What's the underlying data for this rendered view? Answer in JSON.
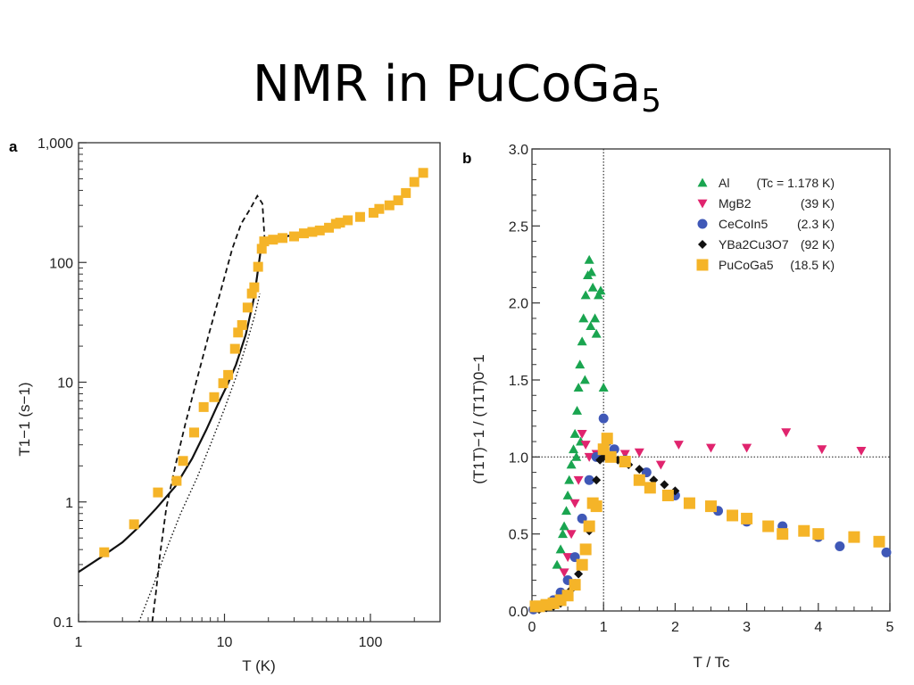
{
  "title": {
    "main": "NMR in PuCoGa",
    "sub": "5"
  },
  "colors": {
    "pucoga5": "#F5B428",
    "al": "#1AA550",
    "mgb2": "#E0246E",
    "cecoin5": "#3F58B7",
    "ybco": "#111111"
  },
  "chart_data": [
    {
      "panel": "a",
      "type": "scatter",
      "xlabel": "T (K)",
      "ylabel": "T1−1 (s−1)",
      "x_scale": "log",
      "y_scale": "log",
      "xlim": [
        1,
        300
      ],
      "ylim": [
        0.1,
        1000
      ],
      "x_ticks": [
        {
          "v": 1,
          "label": "1"
        },
        {
          "v": 10,
          "label": "10"
        },
        {
          "v": 100,
          "label": "100"
        }
      ],
      "y_ticks": [
        {
          "v": 0.1,
          "label": "0.1"
        },
        {
          "v": 1,
          "label": "1"
        },
        {
          "v": 10,
          "label": "10"
        },
        {
          "v": 100,
          "label": "100"
        },
        {
          "v": 1000,
          "label": "1,000"
        }
      ],
      "series": [
        {
          "marker": "square",
          "color": "#F5B428",
          "points": [
            [
              1.5,
              0.38
            ],
            [
              2.4,
              0.65
            ],
            [
              3.5,
              1.2
            ],
            [
              4.7,
              1.5
            ],
            [
              5.2,
              2.2
            ],
            [
              6.2,
              3.8
            ],
            [
              7.2,
              6.2
            ],
            [
              8.5,
              7.5
            ],
            [
              9.8,
              9.8
            ],
            [
              10.6,
              11.5
            ],
            [
              11.8,
              19
            ],
            [
              12.4,
              26
            ],
            [
              13.2,
              30
            ],
            [
              14.4,
              42
            ],
            [
              15.4,
              55
            ],
            [
              16.0,
              62
            ],
            [
              17.0,
              92
            ],
            [
              18.0,
              130
            ],
            [
              18.7,
              150
            ],
            [
              21.5,
              155
            ],
            [
              25,
              160
            ],
            [
              30,
              165
            ],
            [
              35,
              175
            ],
            [
              40,
              180
            ],
            [
              45,
              185
            ],
            [
              52,
              195
            ],
            [
              58,
              210
            ],
            [
              62,
              215
            ],
            [
              70,
              225
            ],
            [
              85,
              240
            ],
            [
              105,
              260
            ],
            [
              115,
              280
            ],
            [
              135,
              300
            ],
            [
              155,
              330
            ],
            [
              175,
              380
            ],
            [
              200,
              470
            ],
            [
              230,
              560
            ]
          ]
        }
      ],
      "curves": [
        {
          "style": "solid",
          "points": [
            [
              1,
              0.26
            ],
            [
              1.4,
              0.34
            ],
            [
              2,
              0.46
            ],
            [
              2.6,
              0.62
            ],
            [
              3.4,
              0.88
            ],
            [
              4.6,
              1.35
            ],
            [
              6,
              2.3
            ],
            [
              7.5,
              4
            ],
            [
              9,
              6.5
            ],
            [
              10.5,
              9.6
            ],
            [
              12,
              14
            ],
            [
              14,
              25
            ],
            [
              16,
              52
            ],
            [
              18,
              145
            ],
            [
              20,
              155
            ],
            [
              30,
              170
            ],
            [
              45,
              190
            ],
            [
              60,
              210
            ],
            [
              75,
              235
            ]
          ]
        },
        {
          "style": "dashed",
          "points": [
            [
              3.2,
              0.1
            ],
            [
              3.4,
              0.18
            ],
            [
              3.6,
              0.35
            ],
            [
              4,
              0.9
            ],
            [
              4.6,
              2
            ],
            [
              5.4,
              4.5
            ],
            [
              6.4,
              10
            ],
            [
              7.8,
              25
            ],
            [
              9.5,
              60
            ],
            [
              11.3,
              130
            ],
            [
              13,
              210
            ],
            [
              15,
              280
            ],
            [
              16.8,
              360
            ],
            [
              18.2,
              310
            ],
            [
              18.6,
              200
            ],
            [
              18.9,
              145
            ]
          ]
        },
        {
          "style": "dotted",
          "points": [
            [
              2.6,
              0.1
            ],
            [
              3.3,
              0.21
            ],
            [
              4,
              0.4
            ],
            [
              5,
              0.8
            ],
            [
              6.5,
              1.6
            ],
            [
              8,
              3
            ],
            [
              10,
              6
            ],
            [
              12,
              11
            ],
            [
              14,
              20
            ],
            [
              16,
              35
            ],
            [
              17.5,
              55
            ]
          ]
        }
      ]
    },
    {
      "panel": "b",
      "type": "scatter",
      "xlabel": "T / Tc",
      "ylabel": "(T1T)−1 / (T1T)0−1",
      "xlim": [
        0,
        5
      ],
      "ylim": [
        0,
        3
      ],
      "x_ticks": [
        {
          "v": 0,
          "label": "0"
        },
        {
          "v": 1,
          "label": "1"
        },
        {
          "v": 2,
          "label": "2"
        },
        {
          "v": 3,
          "label": "3"
        },
        {
          "v": 4,
          "label": "4"
        },
        {
          "v": 5,
          "label": "5"
        }
      ],
      "y_ticks": [
        {
          "v": 0,
          "label": "0.0"
        },
        {
          "v": 0.5,
          "label": "0.5"
        },
        {
          "v": 1,
          "label": "1.0"
        },
        {
          "v": 1.5,
          "label": "1.5"
        },
        {
          "v": 2,
          "label": "2.0"
        },
        {
          "v": 2.5,
          "label": "2.5"
        },
        {
          "v": 3,
          "label": "3.0"
        }
      ],
      "ref_lines": [
        {
          "axis": "x",
          "value": 1,
          "style": "dotted"
        },
        {
          "axis": "y",
          "value": 1,
          "style": "dotted"
        }
      ],
      "legend": {
        "position": "top-right",
        "entries": [
          {
            "name": "Al",
            "note": "(Tc = 1.178 K)"
          },
          {
            "name": "MgB2",
            "note": "(39 K)"
          },
          {
            "name": "CeCoIn5",
            "note": "(2.3 K)"
          },
          {
            "name": "YBa2Cu3O7",
            "note": "(92 K)"
          },
          {
            "name": "PuCoGa5",
            "note": "(18.5 K)"
          }
        ]
      },
      "series": [
        {
          "name": "Al",
          "marker": "triangle-up",
          "color": "#1AA550",
          "points": [
            [
              0.35,
              0.3
            ],
            [
              0.4,
              0.4
            ],
            [
              0.43,
              0.5
            ],
            [
              0.45,
              0.55
            ],
            [
              0.48,
              0.65
            ],
            [
              0.5,
              0.75
            ],
            [
              0.52,
              0.85
            ],
            [
              0.55,
              0.95
            ],
            [
              0.58,
              1.05
            ],
            [
              0.6,
              1.15
            ],
            [
              0.63,
              1.3
            ],
            [
              0.65,
              1.45
            ],
            [
              0.67,
              1.6
            ],
            [
              0.7,
              1.75
            ],
            [
              0.72,
              1.9
            ],
            [
              0.75,
              2.05
            ],
            [
              0.78,
              2.18
            ],
            [
              0.8,
              2.28
            ],
            [
              0.83,
              2.2
            ],
            [
              0.85,
              2.1
            ],
            [
              0.88,
              1.9
            ],
            [
              0.9,
              1.8
            ],
            [
              0.93,
              2.05
            ],
            [
              0.96,
              2.08
            ],
            [
              1.0,
              1.45
            ],
            [
              0.62,
              1.0
            ],
            [
              0.68,
              1.1
            ],
            [
              0.74,
              1.5
            ],
            [
              0.82,
              1.85
            ]
          ]
        },
        {
          "name": "MgB2",
          "marker": "triangle-down",
          "color": "#E0246E",
          "points": [
            [
              0.45,
              0.25
            ],
            [
              0.5,
              0.35
            ],
            [
              0.55,
              0.5
            ],
            [
              0.6,
              0.7
            ],
            [
              0.65,
              0.85
            ],
            [
              0.7,
              1.15
            ],
            [
              0.75,
              1.08
            ],
            [
              0.8,
              1.0
            ],
            [
              0.9,
              1.02
            ],
            [
              1.0,
              1.05
            ],
            [
              1.1,
              1.0
            ],
            [
              1.3,
              1.02
            ],
            [
              1.5,
              1.03
            ],
            [
              1.8,
              0.95
            ],
            [
              2.05,
              1.08
            ],
            [
              2.5,
              1.06
            ],
            [
              3.0,
              1.06
            ],
            [
              3.55,
              1.16
            ],
            [
              4.05,
              1.05
            ],
            [
              4.6,
              1.04
            ]
          ]
        },
        {
          "name": "CeCoIn5",
          "marker": "circle",
          "color": "#3F58B7",
          "points": [
            [
              0.02,
              0.01
            ],
            [
              0.1,
              0.02
            ],
            [
              0.2,
              0.04
            ],
            [
              0.3,
              0.07
            ],
            [
              0.4,
              0.12
            ],
            [
              0.5,
              0.2
            ],
            [
              0.6,
              0.35
            ],
            [
              0.7,
              0.6
            ],
            [
              0.8,
              0.85
            ],
            [
              0.9,
              1.0
            ],
            [
              1.0,
              1.25
            ],
            [
              1.05,
              1.1
            ],
            [
              1.15,
              1.05
            ],
            [
              1.3,
              0.98
            ],
            [
              1.6,
              0.9
            ],
            [
              2.0,
              0.75
            ],
            [
              2.6,
              0.65
            ],
            [
              3.0,
              0.58
            ],
            [
              3.5,
              0.55
            ],
            [
              4.0,
              0.48
            ],
            [
              4.3,
              0.42
            ],
            [
              4.95,
              0.38
            ]
          ]
        },
        {
          "name": "YBa2Cu3O7",
          "marker": "diamond",
          "color": "#111111",
          "points": [
            [
              0.1,
              0.01
            ],
            [
              0.2,
              0.02
            ],
            [
              0.3,
              0.03
            ],
            [
              0.4,
              0.05
            ],
            [
              0.5,
              0.1
            ],
            [
              0.55,
              0.14
            ],
            [
              0.6,
              0.18
            ],
            [
              0.65,
              0.24
            ],
            [
              0.7,
              0.3
            ],
            [
              0.75,
              0.4
            ],
            [
              0.8,
              0.52
            ],
            [
              0.85,
              0.68
            ],
            [
              0.9,
              0.85
            ],
            [
              0.95,
              0.98
            ],
            [
              1.0,
              1.0
            ],
            [
              1.1,
              1.0
            ],
            [
              1.2,
              0.98
            ],
            [
              1.35,
              0.95
            ],
            [
              1.5,
              0.92
            ],
            [
              1.7,
              0.85
            ],
            [
              1.85,
              0.82
            ],
            [
              2.0,
              0.78
            ]
          ]
        },
        {
          "name": "PuCoGa5",
          "marker": "square",
          "color": "#F5B428",
          "points": [
            [
              0.05,
              0.03
            ],
            [
              0.1,
              0.03
            ],
            [
              0.2,
              0.04
            ],
            [
              0.3,
              0.05
            ],
            [
              0.4,
              0.07
            ],
            [
              0.5,
              0.1
            ],
            [
              0.6,
              0.17
            ],
            [
              0.7,
              0.3
            ],
            [
              0.75,
              0.4
            ],
            [
              0.8,
              0.55
            ],
            [
              0.85,
              0.7
            ],
            [
              0.9,
              0.68
            ],
            [
              1.0,
              1.05
            ],
            [
              1.05,
              1.12
            ],
            [
              1.1,
              1.0
            ],
            [
              1.3,
              0.97
            ],
            [
              1.5,
              0.85
            ],
            [
              1.65,
              0.8
            ],
            [
              1.9,
              0.75
            ],
            [
              2.2,
              0.7
            ],
            [
              2.5,
              0.68
            ],
            [
              2.8,
              0.62
            ],
            [
              3.0,
              0.6
            ],
            [
              3.3,
              0.55
            ],
            [
              3.5,
              0.5
            ],
            [
              3.8,
              0.52
            ],
            [
              4.0,
              0.5
            ],
            [
              4.5,
              0.48
            ],
            [
              4.85,
              0.45
            ]
          ]
        }
      ]
    }
  ]
}
